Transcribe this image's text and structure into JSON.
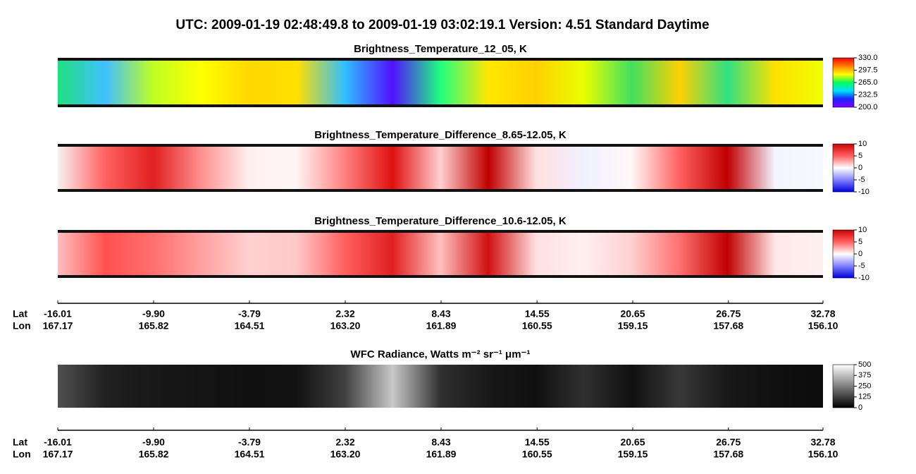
{
  "title": "UTC:  2009-01-19   02:48:49.8  to  2009-01-19   03:02:19.1    Version: 4.51  Standard Daytime",
  "chart_data": [
    {
      "type": "heatmap",
      "title": "Brightness_Temperature_12_05, K",
      "colorbar": {
        "lim": [
          200,
          330
        ],
        "ticks": [
          {
            "value": 330,
            "label": "330.0"
          },
          297.5,
          {
            "value": 265,
            "label": "265.0"
          },
          232.5,
          {
            "value": 200,
            "label": "200.0"
          }
        ],
        "colors": [
          "#8000ff",
          "#2020ff",
          "#00e0ff",
          "#00ff60",
          "#ffff00",
          "#ff8000",
          "#ff0000"
        ]
      }
    },
    {
      "type": "heatmap",
      "title": "Brightness_Temperature_Difference_8.65-12.05, K",
      "colorbar": {
        "lim": [
          -10,
          10
        ],
        "ticks": [
          10,
          5,
          0,
          -5,
          -10
        ],
        "colors": [
          "#0000e0",
          "#8080ff",
          "#ffffff",
          "#ff6060",
          "#d00000"
        ]
      }
    },
    {
      "type": "heatmap",
      "title": "Brightness_Temperature_Difference_10.6-12.05, K",
      "colorbar": {
        "lim": [
          -10,
          10
        ],
        "ticks": [
          10,
          5,
          0,
          -5,
          -10
        ],
        "colors": [
          "#0000e0",
          "#8080ff",
          "#ffffff",
          "#ff6060",
          "#d00000"
        ]
      }
    },
    {
      "type": "heatmap",
      "title": "WFC Radiance, Watts m⁻² sr⁻¹ μm⁻¹",
      "colorbar": {
        "lim": [
          0,
          500
        ],
        "ticks": [
          500,
          375,
          250,
          125,
          0
        ],
        "colors": [
          "#000000",
          "#ffffff"
        ]
      }
    }
  ],
  "axis": {
    "lat_label": "Lat",
    "lon_label": "Lon",
    "xlim": [
      -16.01,
      32.78
    ],
    "xticks": [
      -16.01,
      {
        "value": -9.9,
        "label": "-9.90"
      },
      -3.79,
      2.32,
      8.43,
      14.55,
      20.65,
      26.75,
      32.78
    ],
    "lon": [
      167.17,
      165.82,
      164.51,
      {
        "value": 163.2,
        "label": "163.20"
      },
      161.89,
      160.55,
      159.15,
      157.68,
      {
        "value": 156.1,
        "label": "156.10"
      }
    ]
  }
}
